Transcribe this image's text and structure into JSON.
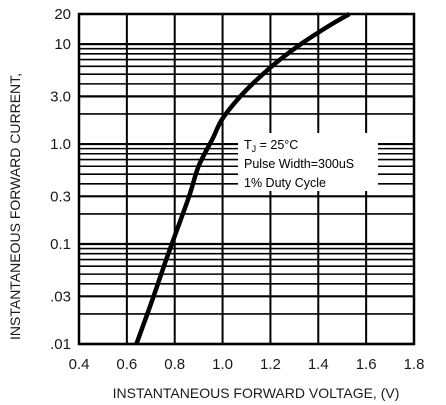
{
  "chart_data": {
    "type": "line",
    "xlabel": "INSTANTANEOUS FORWARD VOLTAGE, (V)",
    "ylabel": "INSTANTANEOUS FORWARD CURRENT,",
    "x_scale": "linear",
    "y_scale": "log",
    "xlim": [
      0.4,
      1.8
    ],
    "ylim": [
      0.01,
      20
    ],
    "x_ticks": [
      0.4,
      0.6,
      0.8,
      1.0,
      1.2,
      1.4,
      1.6,
      1.8
    ],
    "x_tick_labels": [
      "0.4",
      "0.6",
      "0.8",
      "1.0",
      "1.2",
      "1.4",
      "1.6",
      "1.8"
    ],
    "y_ticks": [
      0.01,
      0.03,
      0.1,
      0.3,
      1,
      3,
      10,
      20
    ],
    "y_tick_labels": [
      ".01",
      ".03",
      "0.1",
      "0.3",
      "1.0",
      "3.0",
      "10",
      "20"
    ],
    "grid": true,
    "annotation_lines": [
      "T",
      "J",
      " = 25",
      "°C",
      "Pulse Width=300uS",
      "1% Duty Cycle"
    ],
    "series": [
      {
        "x": [
          0.64,
          0.7,
          0.76,
          0.8,
          0.86,
          0.9,
          0.96,
          1.0,
          1.08,
          1.16,
          1.24,
          1.34,
          1.44,
          1.53
        ],
        "y": [
          0.01,
          0.025,
          0.065,
          0.12,
          0.3,
          0.6,
          1.15,
          1.8,
          3.1,
          4.8,
          7.0,
          10.5,
          15.0,
          20.0
        ]
      }
    ]
  },
  "colors": {
    "curve": "#000000",
    "grid": "#000000",
    "text": "#1a1a1a",
    "background": "#ffffff"
  }
}
